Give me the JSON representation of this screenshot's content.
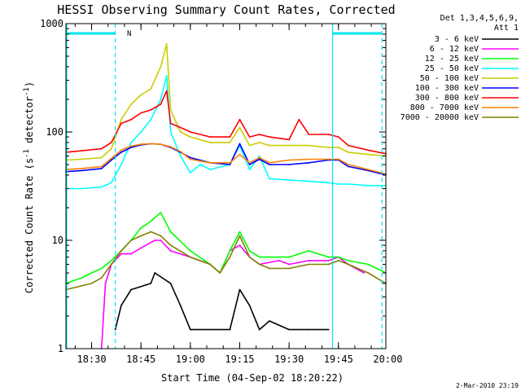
{
  "chart_data": {
    "type": "line",
    "title": "HESSI Observing Summary Count Rates, Corrected",
    "xlabel": "Start Time (04-Sep-02 18:20:22)",
    "ylabel_main": "Corrected Count Rate (s",
    "ylabel_sup1": "-1",
    "ylabel_mid": " detector",
    "ylabel_sup2": "-1",
    "ylabel_end": ")",
    "yscale": "log",
    "ylim": [
      1,
      1000
    ],
    "xlim_minutes": [
      18.37,
      19.99
    ],
    "x_ticks": [
      {
        "label": "18:30",
        "value": 18.5
      },
      {
        "label": "18:45",
        "value": 18.75
      },
      {
        "label": "19:00",
        "value": 19.0
      },
      {
        "label": "19:15",
        "value": 19.25
      },
      {
        "label": "19:30",
        "value": 19.5
      },
      {
        "label": "19:45",
        "value": 19.75
      },
      {
        "label": "20:00",
        "value": 20.0
      }
    ],
    "y_ticks": [
      {
        "label": "1",
        "value": 1
      },
      {
        "label": "10",
        "value": 10
      },
      {
        "label": "100",
        "value": 100
      },
      {
        "label": "1000",
        "value": 1000
      }
    ],
    "legend_title_1": "Det 1,3,4,5,6,9,",
    "legend_title_2": "Att 1",
    "legend_position": "right",
    "night_marker": "N",
    "date_stamp": "2-Mar-2010 23:19",
    "boundary_color": "#00e5ee",
    "series": [
      {
        "name": "3 - 6 keV",
        "color": "#000000",
        "x": [
          18.37,
          18.6,
          18.62,
          18.65,
          18.7,
          18.8,
          18.82,
          18.9,
          18.95,
          19.0,
          19.2,
          19.25,
          19.3,
          19.35,
          19.4,
          19.5,
          19.6,
          19.7,
          19.75
        ],
        "y": [
          null,
          null,
          1.5,
          2.5,
          3.5,
          4,
          5,
          4,
          2.5,
          1.5,
          1.5,
          3.5,
          2.5,
          1.5,
          1.8,
          1.5,
          1.5,
          1.5,
          null
        ]
      },
      {
        "name": "6 - 12 keV",
        "color": "#ff00ff",
        "x": [
          18.37,
          18.55,
          18.57,
          18.6,
          18.65,
          18.7,
          18.75,
          18.82,
          18.85,
          18.9,
          19.0,
          19.1,
          19.15,
          19.2,
          19.25,
          19.3,
          19.35,
          19.45,
          19.5,
          19.6,
          19.7,
          19.75,
          19.8,
          19.88,
          19.99
        ],
        "y": [
          null,
          1,
          4,
          6,
          7.5,
          7.5,
          8.5,
          10,
          10,
          8,
          7,
          6,
          5,
          8,
          9,
          7,
          6,
          6.5,
          6,
          6.5,
          6.5,
          7,
          6,
          5,
          null
        ]
      },
      {
        "name": "12 - 25 keV",
        "color": "#00ff00",
        "x": [
          18.37,
          18.45,
          18.5,
          18.55,
          18.6,
          18.65,
          18.7,
          18.75,
          18.8,
          18.85,
          18.9,
          19.0,
          19.1,
          19.15,
          19.2,
          19.25,
          19.3,
          19.35,
          19.4,
          19.5,
          19.6,
          19.7,
          19.75,
          19.8,
          19.9,
          19.99
        ],
        "y": [
          4,
          4.5,
          5,
          5.5,
          6.5,
          8,
          10,
          13,
          15,
          18,
          12,
          8,
          6,
          5,
          8,
          12,
          8,
          7,
          7,
          7,
          8,
          7,
          7,
          6.5,
          6,
          5
        ]
      },
      {
        "name": "25 - 50 keV",
        "color": "#00ffff",
        "x": [
          18.37,
          18.45,
          18.55,
          18.6,
          18.65,
          18.7,
          18.75,
          18.8,
          18.85,
          18.88,
          18.9,
          18.95,
          19.0,
          19.05,
          19.1,
          19.2,
          19.25,
          19.3,
          19.35,
          19.4,
          19.5,
          19.6,
          19.7,
          19.75,
          19.8,
          19.9,
          19.99
        ],
        "y": [
          30,
          30,
          31,
          34,
          50,
          80,
          100,
          130,
          200,
          330,
          100,
          60,
          42,
          50,
          45,
          50,
          75,
          45,
          60,
          37,
          36,
          35,
          34,
          33,
          33,
          32,
          32
        ]
      },
      {
        "name": "50 - 100 keV",
        "color": "#cccc00",
        "x": [
          18.37,
          18.45,
          18.55,
          18.6,
          18.65,
          18.7,
          18.75,
          18.8,
          18.85,
          18.88,
          18.9,
          18.95,
          19.0,
          19.1,
          19.2,
          19.25,
          19.3,
          19.35,
          19.4,
          19.5,
          19.6,
          19.7,
          19.75,
          19.8,
          19.9,
          19.99
        ],
        "y": [
          55,
          56,
          58,
          70,
          130,
          180,
          220,
          250,
          400,
          650,
          160,
          100,
          90,
          80,
          80,
          110,
          75,
          80,
          75,
          75,
          75,
          72,
          72,
          65,
          62,
          60
        ]
      },
      {
        "name": "100 - 300 keV",
        "color": "#0000ff",
        "x": [
          18.37,
          18.45,
          18.55,
          18.6,
          18.65,
          18.7,
          18.75,
          18.8,
          18.85,
          18.9,
          18.95,
          19.0,
          19.1,
          19.2,
          19.25,
          19.3,
          19.35,
          19.4,
          19.5,
          19.6,
          19.7,
          19.75,
          19.8,
          19.9,
          19.99
        ],
        "y": [
          43,
          44,
          46,
          55,
          65,
          72,
          76,
          78,
          77,
          72,
          65,
          58,
          52,
          50,
          78,
          50,
          56,
          50,
          50,
          52,
          55,
          55,
          48,
          44,
          40
        ]
      },
      {
        "name": "300 - 800 keV",
        "color": "#ff0000",
        "x": [
          18.37,
          18.45,
          18.55,
          18.6,
          18.65,
          18.7,
          18.75,
          18.8,
          18.85,
          18.88,
          18.9,
          18.95,
          19.0,
          19.1,
          19.2,
          19.25,
          19.3,
          19.35,
          19.4,
          19.5,
          19.55,
          19.6,
          19.7,
          19.75,
          19.8,
          19.9,
          19.99
        ],
        "y": [
          65,
          67,
          70,
          80,
          120,
          130,
          150,
          160,
          180,
          240,
          120,
          110,
          100,
          90,
          90,
          130,
          90,
          95,
          90,
          85,
          130,
          95,
          95,
          90,
          75,
          68,
          63
        ]
      },
      {
        "name": "800 - 7000 keV",
        "color": "#ff8000",
        "x": [
          18.37,
          18.45,
          18.55,
          18.6,
          18.65,
          18.7,
          18.75,
          18.8,
          18.85,
          18.9,
          18.95,
          19.0,
          19.1,
          19.2,
          19.25,
          19.3,
          19.35,
          19.4,
          19.5,
          19.6,
          19.7,
          19.75,
          19.8,
          19.9,
          19.99
        ],
        "y": [
          45,
          46,
          48,
          57,
          68,
          74,
          77,
          78,
          77,
          73,
          66,
          56,
          52,
          52,
          62,
          52,
          58,
          52,
          55,
          56,
          56,
          56,
          50,
          45,
          41
        ]
      },
      {
        "name": "7000 - 20000 keV",
        "color": "#808000",
        "x": [
          18.37,
          18.45,
          18.5,
          18.55,
          18.6,
          18.65,
          18.7,
          18.75,
          18.8,
          18.85,
          18.9,
          19.0,
          19.1,
          19.15,
          19.2,
          19.25,
          19.3,
          19.35,
          19.4,
          19.5,
          19.6,
          19.7,
          19.75,
          19.8,
          19.9,
          19.99
        ],
        "y": [
          3.5,
          3.8,
          4,
          4.5,
          6,
          8,
          10,
          11,
          12,
          11,
          9,
          7,
          6,
          5,
          7,
          11,
          7,
          6,
          5.5,
          5.5,
          6,
          6,
          6.5,
          6,
          5,
          4
        ]
      }
    ]
  }
}
